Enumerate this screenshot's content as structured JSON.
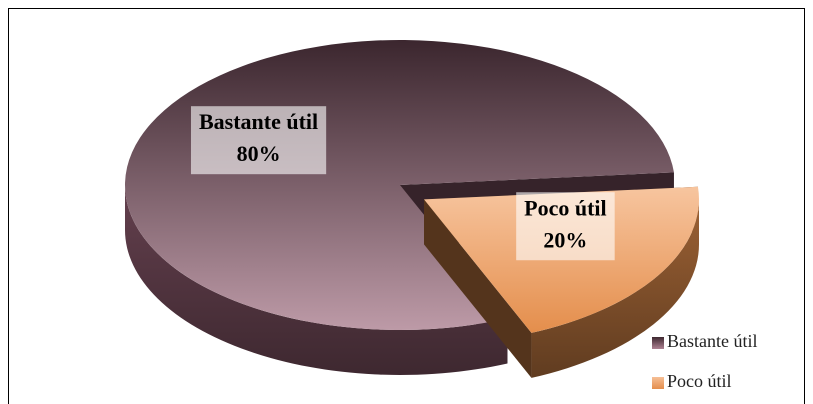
{
  "chart_data": {
    "type": "pie",
    "categories": [
      "Bastante útil",
      "Poco útil"
    ],
    "values": [
      80,
      20
    ],
    "value_labels": [
      "80%",
      "20%"
    ],
    "colors": [
      "#9a6378",
      "#f09550"
    ],
    "legend": "bottom-right",
    "exploded": [
      false,
      true
    ]
  }
}
